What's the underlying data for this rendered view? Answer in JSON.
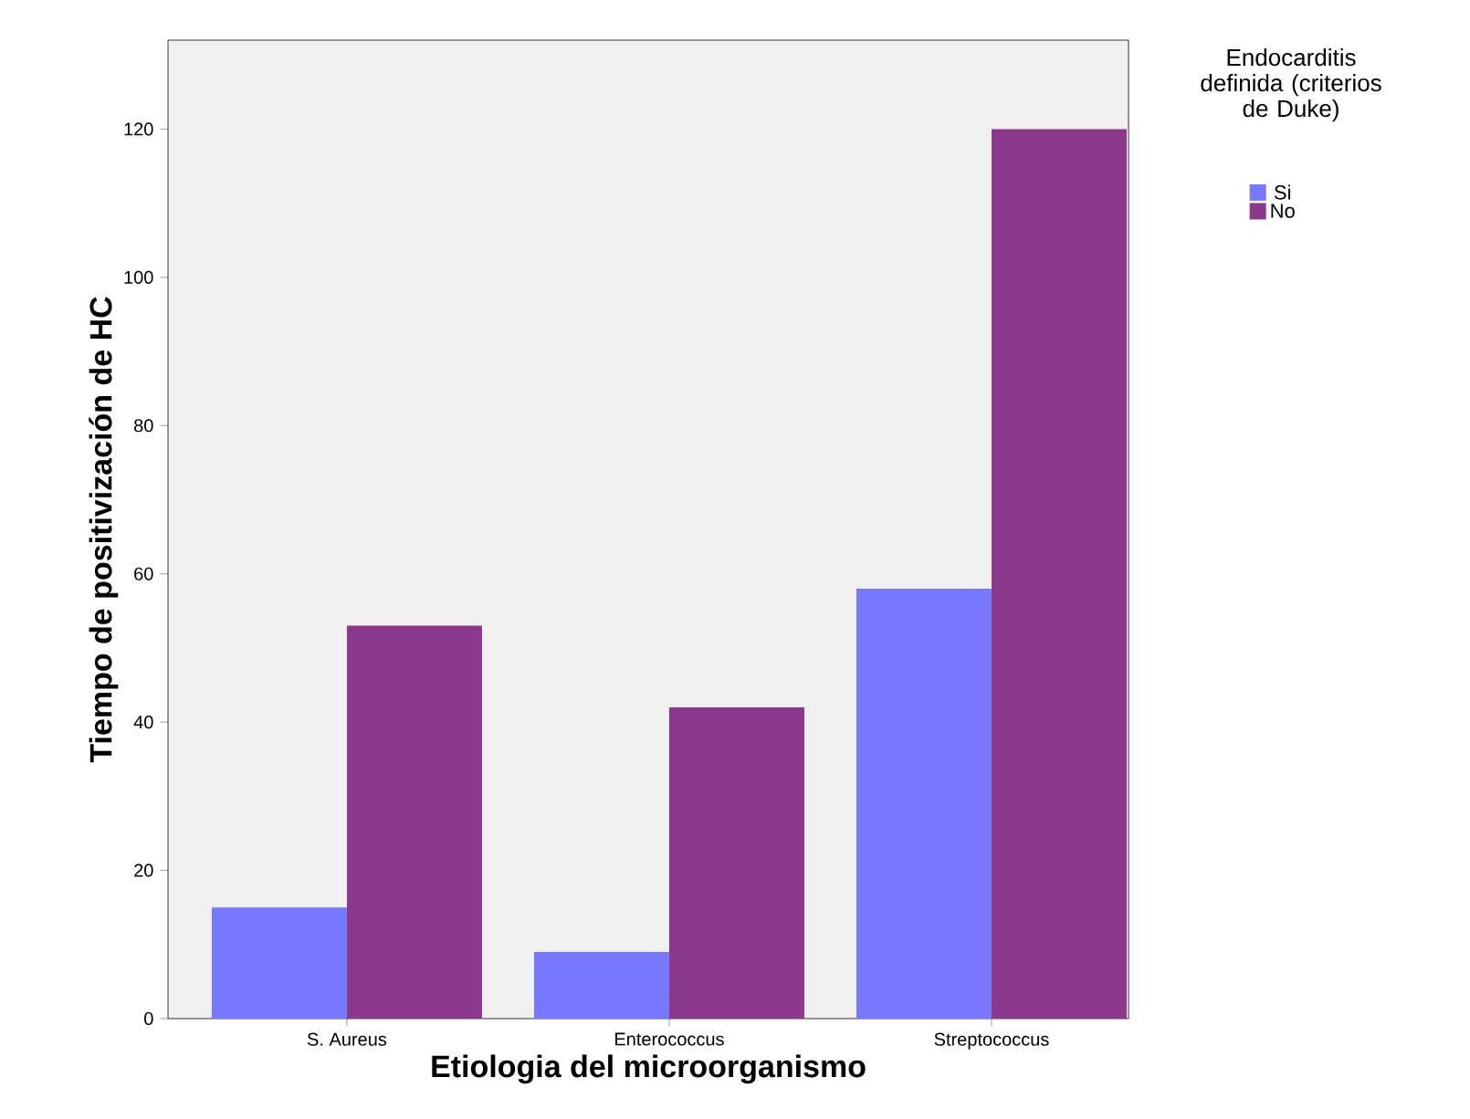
{
  "chart_data": {
    "type": "bar",
    "xlabel": "Etiologia del microorganismo",
    "ylabel": "Tiempo de positivización de HC",
    "legend_title": "Endocarditis definida (criterios de Duke)",
    "legend": "right",
    "categories": [
      "S. Aureus",
      "Enterococcus",
      "Streptococcus"
    ],
    "series": [
      {
        "name": "Si",
        "color": "#7878ff",
        "values": [
          15,
          9,
          58
        ]
      },
      {
        "name": "No",
        "color": "#8b3a8b",
        "values": [
          53,
          42,
          120
        ]
      }
    ],
    "ylim": [
      0,
      132
    ],
    "yticks": [
      0,
      20,
      40,
      60,
      80,
      100,
      120
    ]
  }
}
